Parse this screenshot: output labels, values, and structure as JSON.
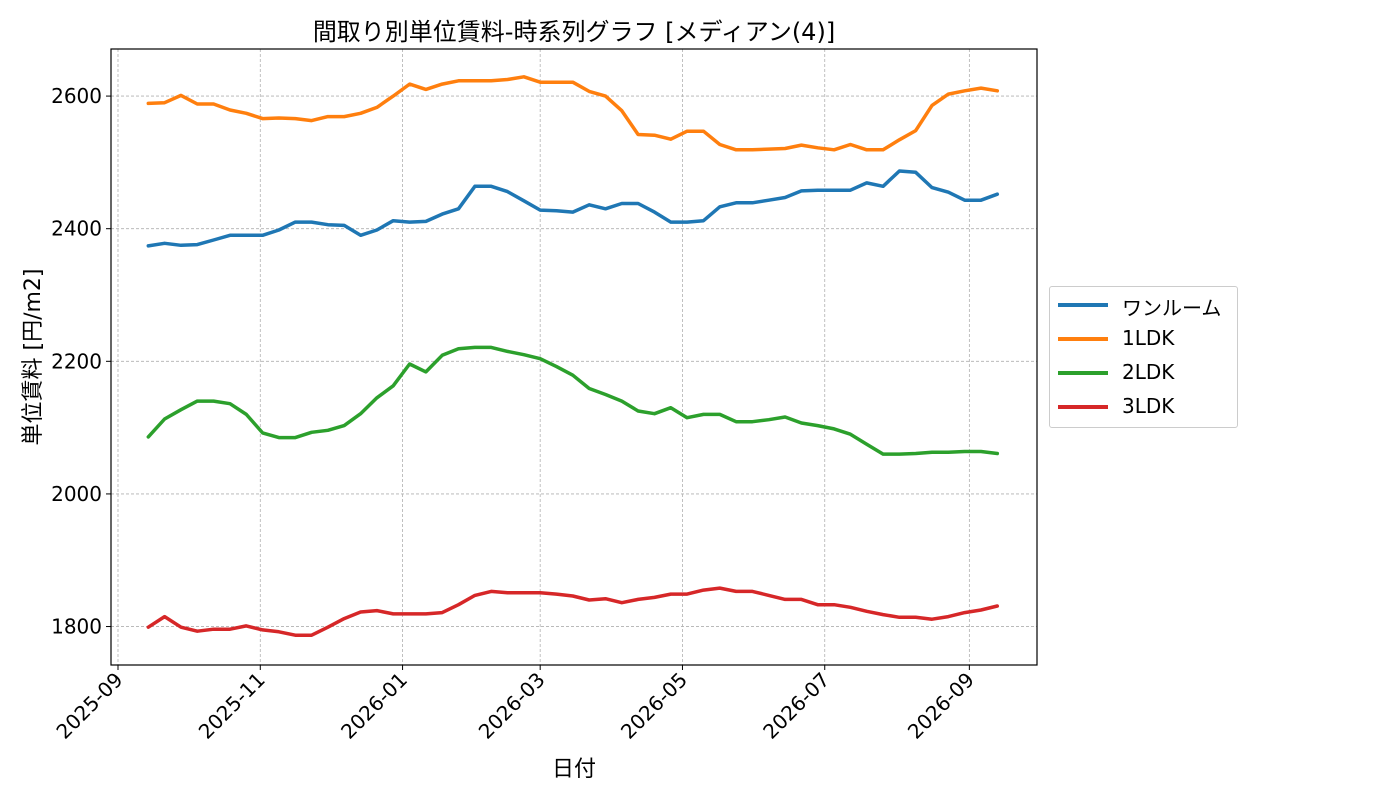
{
  "chart_data": {
    "type": "line",
    "title": "間取り別単位賃料-時系列グラフ [メディアン(4)]",
    "xlabel": "日付",
    "ylabel": "単位賃料 [円/m2]",
    "xlim": [
      "2025-08-29",
      "2026-09-30"
    ],
    "ylim": [
      1742,
      2671
    ],
    "x_ticks": [
      "2025-09",
      "2025-11",
      "2026-01",
      "2026-03",
      "2026-05",
      "2026-07",
      "2026-09"
    ],
    "y_ticks": [
      1800,
      2000,
      2200,
      2400,
      2600
    ],
    "grid": true,
    "legend_position": "right, outside plot",
    "x": [
      "2025-09-14",
      "2025-09-21",
      "2025-09-28",
      "2025-10-05",
      "2025-10-12",
      "2025-10-19",
      "2025-10-26",
      "2025-11-02",
      "2025-11-09",
      "2025-11-16",
      "2025-11-23",
      "2025-11-30",
      "2025-12-07",
      "2025-12-14",
      "2025-12-21",
      "2025-12-28",
      "2026-01-04",
      "2026-01-11",
      "2026-01-18",
      "2026-01-25",
      "2026-02-01",
      "2026-02-08",
      "2026-02-15",
      "2026-02-22",
      "2026-03-01",
      "2026-03-08",
      "2026-03-15",
      "2026-03-22",
      "2026-03-29",
      "2026-04-05",
      "2026-04-12",
      "2026-04-19",
      "2026-04-26",
      "2026-05-03",
      "2026-05-10",
      "2026-05-17",
      "2026-05-24",
      "2026-05-31",
      "2026-06-07",
      "2026-06-14",
      "2026-06-21",
      "2026-06-28",
      "2026-07-05",
      "2026-07-12",
      "2026-07-19",
      "2026-07-26",
      "2026-08-02",
      "2026-08-09",
      "2026-08-16",
      "2026-08-23",
      "2026-08-30",
      "2026-09-06",
      "2026-09-13"
    ],
    "series": [
      {
        "name": "ワンルーム",
        "color": "#1f77b4",
        "values": [
          2374,
          2378,
          2375,
          2376,
          2383,
          2390,
          2390,
          2390,
          2398,
          2410,
          2410,
          2406,
          2405,
          2390,
          2398,
          2412,
          2410,
          2411,
          2422,
          2430,
          2464,
          2464,
          2456,
          2442,
          2428,
          2427,
          2425,
          2436,
          2430,
          2438,
          2438,
          2425,
          2410,
          2410,
          2412,
          2433,
          2439,
          2439,
          2443,
          2447,
          2457,
          2458,
          2458,
          2458,
          2469,
          2464,
          2487,
          2485,
          2462,
          2455,
          2443,
          2443,
          2452
        ]
      },
      {
        "name": "1LDK",
        "color": "#ff7f0e",
        "values": [
          2589,
          2590,
          2601,
          2588,
          2588,
          2579,
          2574,
          2566,
          2567,
          2566,
          2563,
          2569,
          2569,
          2574,
          2583,
          2600,
          2618,
          2610,
          2618,
          2623,
          2623,
          2623,
          2625,
          2629,
          2621,
          2621,
          2621,
          2607,
          2600,
          2578,
          2542,
          2541,
          2535,
          2547,
          2547,
          2527,
          2519,
          2519,
          2520,
          2521,
          2526,
          2522,
          2519,
          2527,
          2519,
          2519,
          2534,
          2548,
          2586,
          2603,
          2608,
          2612,
          2608
        ]
      },
      {
        "name": "2LDK",
        "color": "#2ca02c",
        "values": [
          2086,
          2113,
          2127,
          2140,
          2140,
          2136,
          2120,
          2092,
          2085,
          2085,
          2093,
          2096,
          2103,
          2121,
          2145,
          2163,
          2196,
          2184,
          2209,
          2219,
          2221,
          2221,
          2215,
          2210,
          2204,
          2192,
          2179,
          2159,
          2150,
          2140,
          2125,
          2121,
          2130,
          2115,
          2120,
          2120,
          2109,
          2109,
          2112,
          2116,
          2107,
          2103,
          2098,
          2090,
          2075,
          2060,
          2060,
          2061,
          2063,
          2063,
          2064,
          2064,
          2061
        ]
      },
      {
        "name": "3LDK",
        "color": "#d62728",
        "values": [
          1799,
          1815,
          1799,
          1793,
          1796,
          1796,
          1801,
          1795,
          1792,
          1787,
          1787,
          1799,
          1812,
          1822,
          1824,
          1819,
          1819,
          1819,
          1821,
          1833,
          1847,
          1853,
          1851,
          1851,
          1851,
          1849,
          1846,
          1840,
          1842,
          1836,
          1841,
          1844,
          1849,
          1849,
          1855,
          1858,
          1853,
          1853,
          1847,
          1841,
          1841,
          1833,
          1833,
          1829,
          1823,
          1818,
          1814,
          1814,
          1811,
          1815,
          1821,
          1825,
          1831
        ]
      }
    ]
  }
}
